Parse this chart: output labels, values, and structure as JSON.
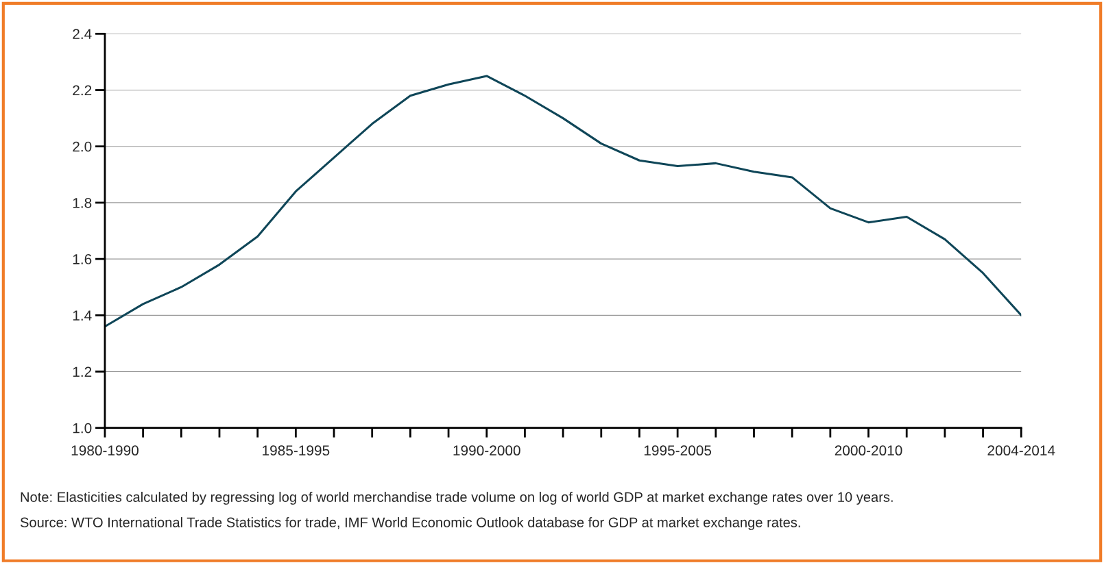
{
  "chart_data": {
    "type": "line",
    "categories": [
      "1980-1990",
      null,
      null,
      null,
      null,
      "1985-1995",
      null,
      null,
      null,
      null,
      "1990-2000",
      null,
      null,
      null,
      null,
      "1995-2005",
      null,
      null,
      null,
      null,
      "2000-2010",
      null,
      null,
      null,
      "2004-2014"
    ],
    "series": [
      {
        "color": "#0f4658",
        "values": [
          1.36,
          1.44,
          1.5,
          1.58,
          1.68,
          1.84,
          1.96,
          2.08,
          2.18,
          2.22,
          2.25,
          2.18,
          2.1,
          2.01,
          1.95,
          1.93,
          1.94,
          1.91,
          1.89,
          1.78,
          1.73,
          1.75,
          1.67,
          1.55,
          1.4
        ]
      }
    ],
    "ylim": [
      1.0,
      2.4
    ],
    "yticks": [
      {
        "value": 1,
        "label": "1.0"
      },
      1.2,
      1.4,
      1.6,
      1.8,
      {
        "value": 2,
        "label": "2.0"
      },
      2.2,
      2.4
    ],
    "grid": "y",
    "legend": false,
    "annotations": [
      "Note: Elasticities calculated by regressing log of world merchandise trade volume on log of world GDP at market exchange rates over 10 years.",
      "Source: WTO International Trade Statistics for trade, IMF World Economic Outlook database for GDP at market exchange rates."
    ]
  }
}
